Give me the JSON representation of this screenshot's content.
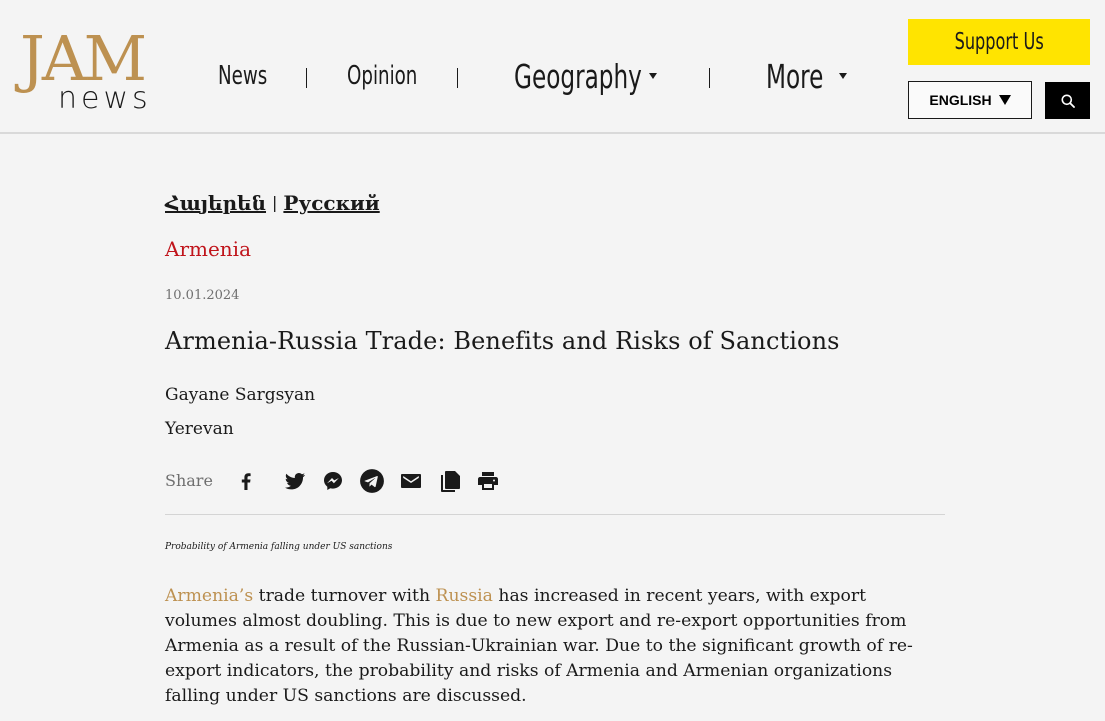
{
  "logo": {
    "top": "JAM",
    "bottom": "news"
  },
  "nav": {
    "news": "News",
    "opinion": "Opinion",
    "geography": "Geography",
    "more": "More",
    "separator": "|"
  },
  "header": {
    "support_label": "Support Us",
    "language_label": "ENGLISH",
    "search_icon": "search-icon"
  },
  "article": {
    "lang_links": {
      "armenian": "Հայերեն",
      "russian": "Русский",
      "separator": "|"
    },
    "category": "Armenia",
    "date": "10.01.2024",
    "title": "Armenia-Russia Trade: Benefits and Risks of Sanctions",
    "author": "Gayane Sargsyan",
    "location": "Yerevan",
    "share_label": "Share",
    "share_icons": [
      "facebook-icon",
      "twitter-icon",
      "messenger-icon",
      "telegram-icon",
      "email-icon",
      "copy-icon",
      "print-icon"
    ],
    "caption": "Probability of Armenia falling under US sanctions",
    "body": {
      "link1": "Armenia’s",
      "text1": " trade turnover with ",
      "link2": "Russia",
      "text2": " has increased in recent years, with export volumes almost doubling. This is due to new export and re-export opportunities from Armenia as a result of the Russian-Ukrainian war. Due to the significant growth of re-export indicators, the probability and risks of Armenia and Armenian organizations falling under US sanctions are discussed."
    }
  },
  "colors": {
    "brand_gold": "#bd9151",
    "support_yellow": "#ffe400",
    "category_red": "#c0141b",
    "background": "#f4f4f4"
  }
}
